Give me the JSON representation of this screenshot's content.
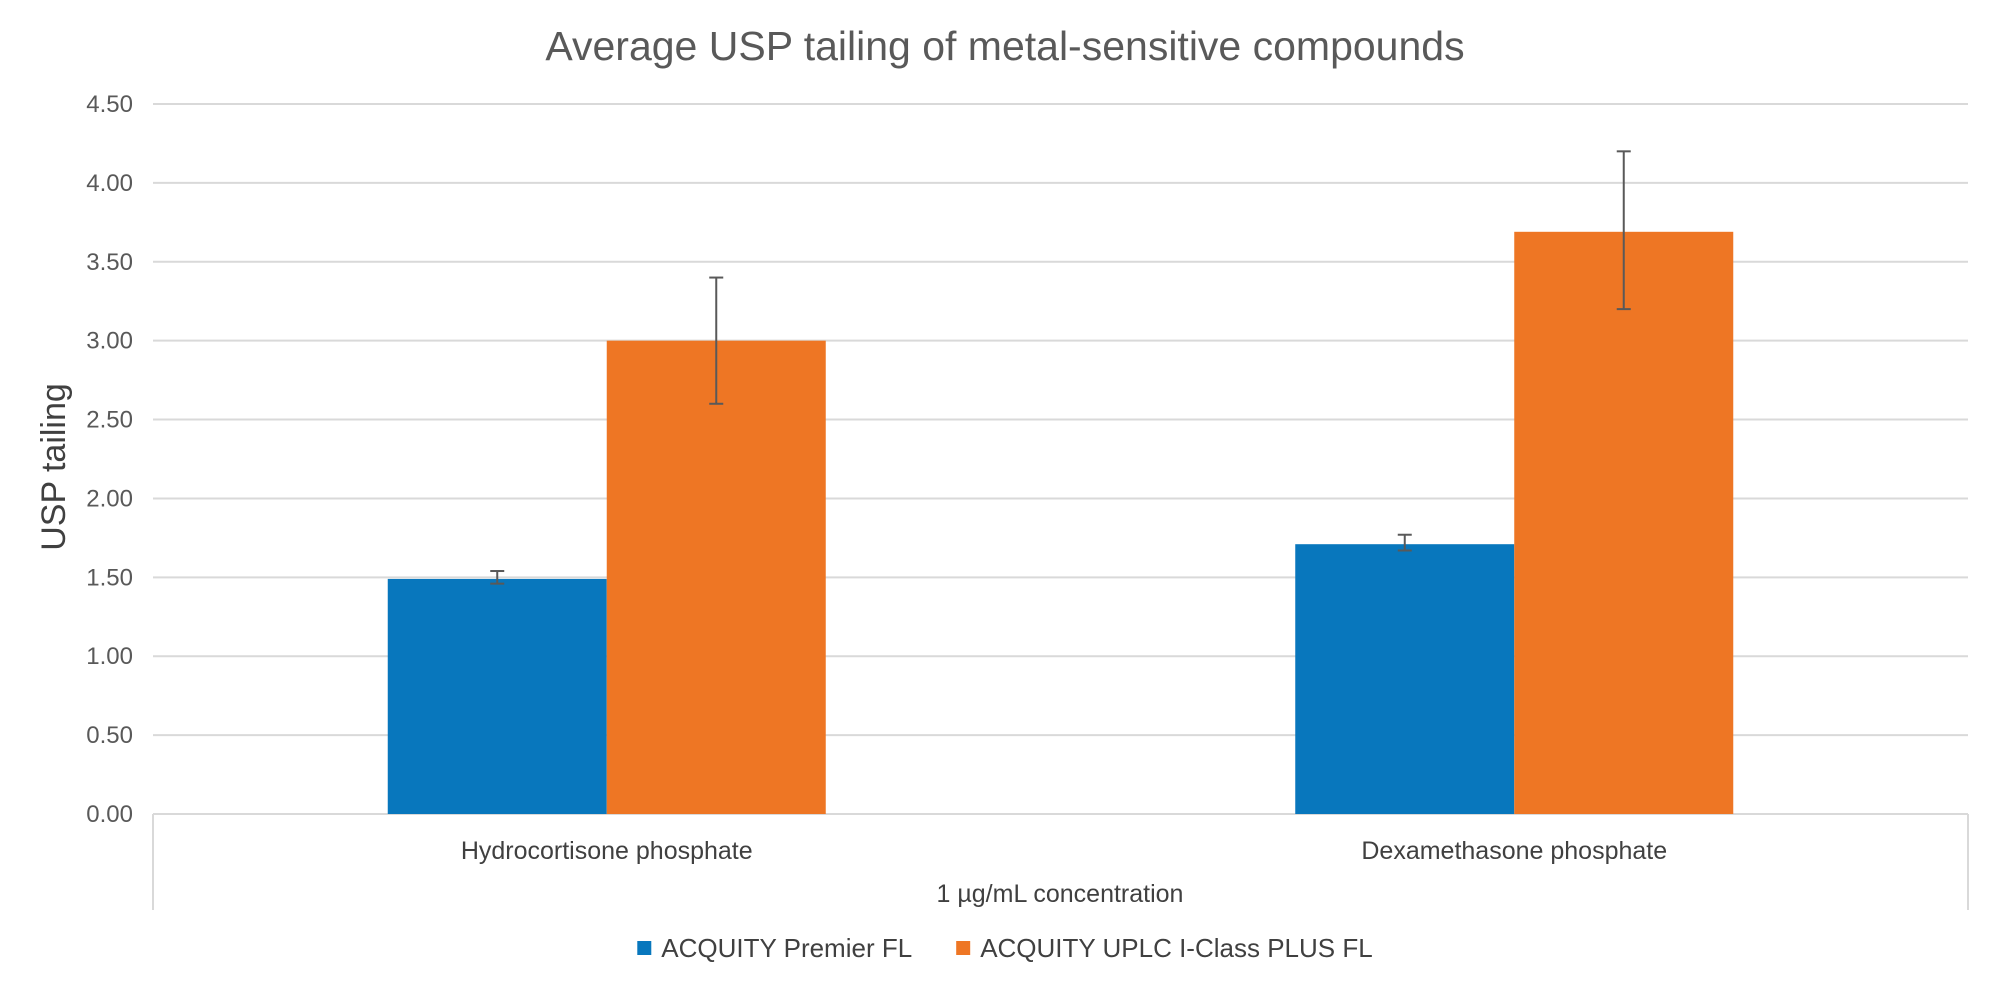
{
  "chart_data": {
    "type": "bar",
    "title": "Average USP tailing of metal-sensitive compounds",
    "xlabel": "1 µg/mL concentration",
    "ylabel": "USP tailing",
    "categories": [
      "Hydrocortisone phosphate",
      "Dexamethasone phosphate"
    ],
    "series": [
      {
        "name": "ACQUITY Premier FL",
        "color": "#0877bd",
        "values": [
          1.49,
          1.71
        ],
        "error_low": [
          1.46,
          1.67
        ],
        "error_high": [
          1.54,
          1.77
        ]
      },
      {
        "name": "ACQUITY UPLC I-Class PLUS FL",
        "color": "#ee7624",
        "values": [
          3.0,
          3.69
        ],
        "error_low": [
          2.6,
          3.2
        ],
        "error_high": [
          3.4,
          4.2
        ]
      }
    ],
    "ylim": [
      0,
      4.5
    ],
    "yticks": [
      "0.00",
      "0.50",
      "1.00",
      "1.50",
      "2.00",
      "2.50",
      "3.00",
      "3.50",
      "4.00",
      "4.50"
    ],
    "grid": true,
    "legend_position": "bottom"
  }
}
